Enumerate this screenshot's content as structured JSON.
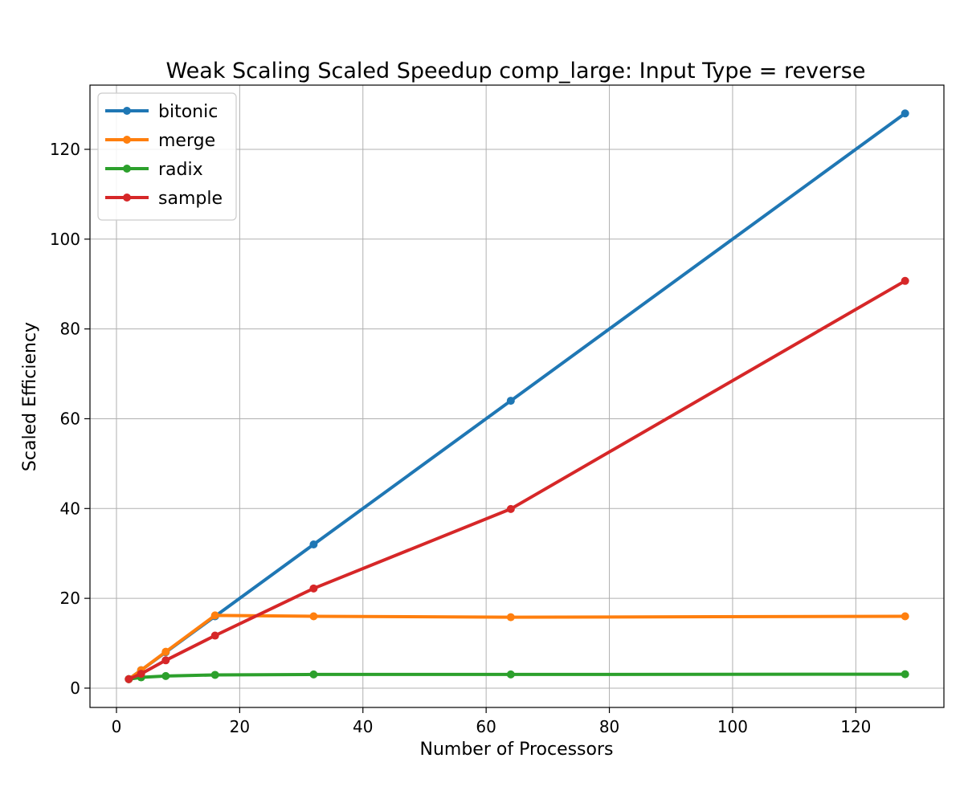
{
  "chart_data": {
    "type": "line",
    "title": "Weak Scaling Scaled Speedup comp_large: Input Type = reverse",
    "xlabel": "Number of Processors",
    "ylabel": "Scaled Efficiency",
    "xlim": [
      -4.3,
      134.3
    ],
    "ylim": [
      -4.3,
      134.3
    ],
    "xticks": [
      0,
      20,
      40,
      60,
      80,
      100,
      120
    ],
    "yticks": [
      0,
      20,
      40,
      60,
      80,
      100,
      120
    ],
    "grid": true,
    "legend_position": "upper-left",
    "x": [
      2,
      4,
      8,
      16,
      32,
      64,
      128
    ],
    "series": [
      {
        "name": "bitonic",
        "color": "#1f77b4",
        "values": [
          2,
          4,
          8,
          16,
          32,
          64,
          128
        ]
      },
      {
        "name": "merge",
        "color": "#ff7f0e",
        "values": [
          2,
          4,
          8.1,
          16.2,
          16.0,
          15.8,
          16.0
        ]
      },
      {
        "name": "radix",
        "color": "#2ca02c",
        "values": [
          2.0,
          2.4,
          2.7,
          2.95,
          3.05,
          3.05,
          3.1
        ]
      },
      {
        "name": "sample",
        "color": "#d62728",
        "values": [
          2.0,
          3.2,
          6.2,
          11.7,
          22.2,
          39.9,
          90.7
        ]
      }
    ]
  }
}
